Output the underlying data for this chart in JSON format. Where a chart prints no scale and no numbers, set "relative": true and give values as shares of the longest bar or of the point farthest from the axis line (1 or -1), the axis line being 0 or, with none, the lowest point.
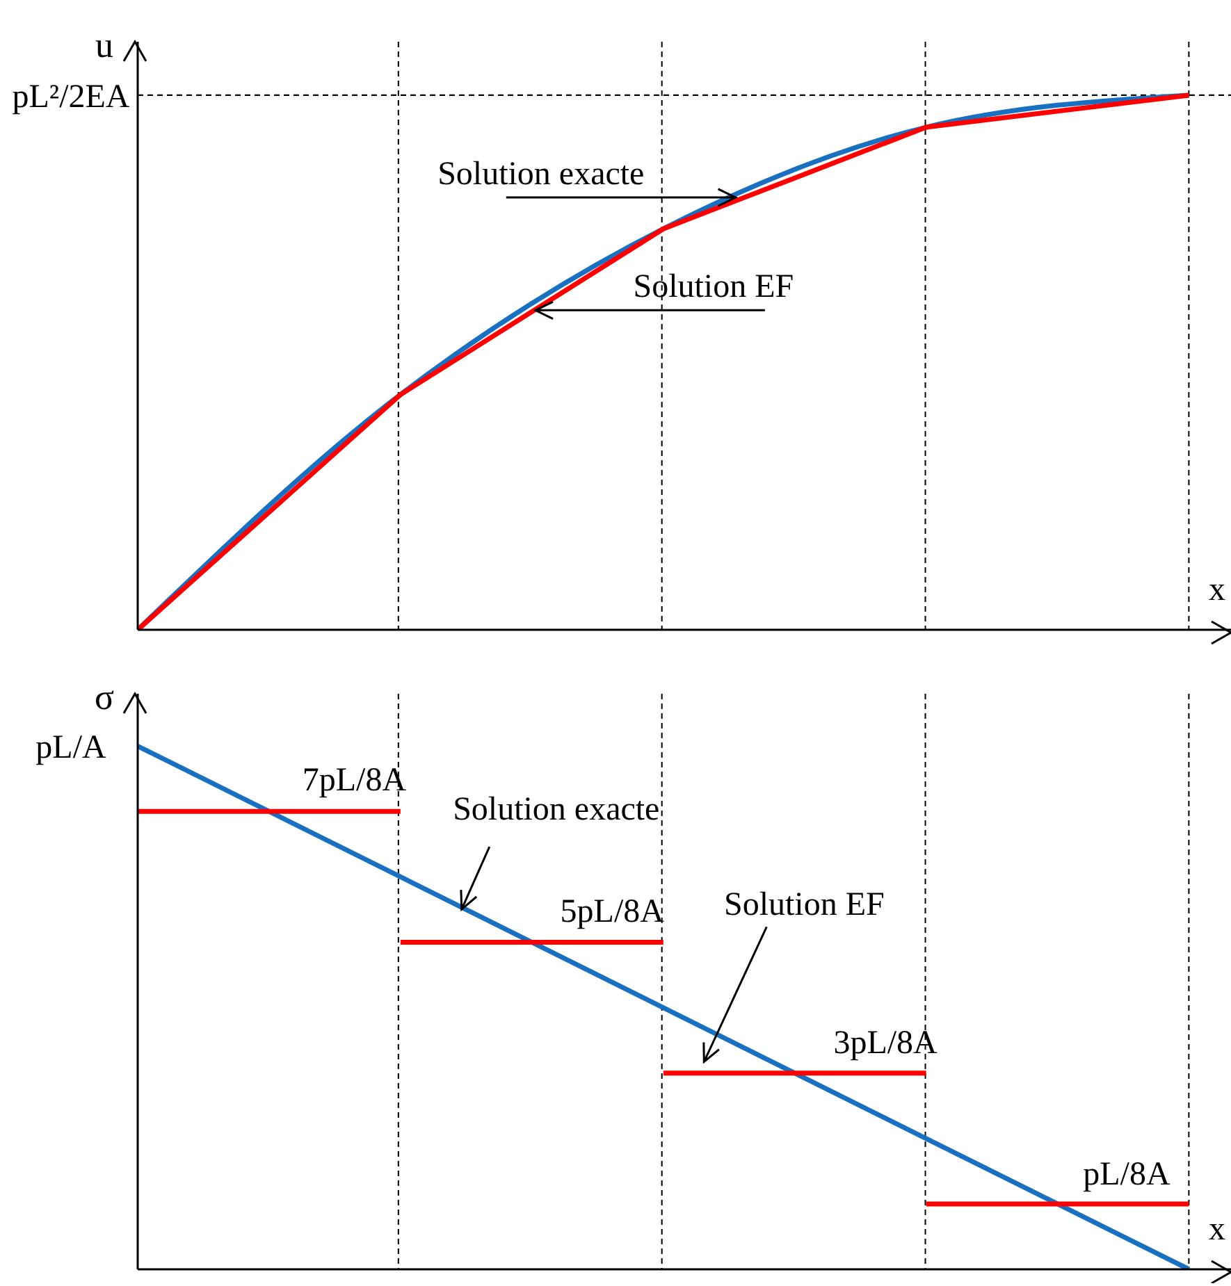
{
  "chart_data": [
    {
      "type": "line",
      "xlabel": "x",
      "ylabel": "u",
      "relative": true,
      "grid": "x",
      "categories": [
        null,
        null,
        null,
        null,
        null
      ],
      "series": [
        {
          "color": "#1a70c0",
          "values": [
            0,
            0.44,
            0.75,
            0.94,
            1
          ]
        },
        {
          "color": "#ff0000",
          "type": "line",
          "values": [
            0,
            0.44,
            0.75,
            0.94,
            1
          ]
        }
      ],
      "ref_lines": [
        {
          "axis": "y",
          "value": 1,
          "label": "pL²/2EA",
          "color": "#000000",
          "line_style": "dashed"
        }
      ],
      "annotations": [
        "Solution exacte",
        "Solution EF"
      ]
    },
    {
      "type": "line",
      "xlabel": "x",
      "ylabel": "σ",
      "relative": true,
      "grid": "x",
      "categories": [
        null,
        null,
        null,
        null,
        null
      ],
      "series": [
        {
          "color": "#1a70c0",
          "values": [
            1,
            0.75,
            0.5,
            0.25,
            0
          ]
        },
        {
          "color": "#ff0000",
          "values": [
            0.875,
            0.875,
            null,
            null,
            null
          ]
        },
        {
          "color": "#ff0000",
          "values": [
            null,
            0.625,
            0.625,
            null,
            null
          ]
        },
        {
          "color": "#ff0000",
          "values": [
            null,
            null,
            0.375,
            0.375,
            null
          ]
        },
        {
          "color": "#ff0000",
          "values": [
            null,
            null,
            null,
            0.125,
            0.125
          ]
        }
      ],
      "annotations": [
        "pL/A",
        {
          "text": "7pL/8A",
          "y": 0.875
        },
        {
          "text": "5pL/8A",
          "y": 0.625
        },
        {
          "text": "3pL/8A",
          "y": 0.375
        },
        {
          "text": "pL/8A",
          "y": 0.125
        },
        "Solution exacte",
        "Solution EF"
      ]
    }
  ]
}
